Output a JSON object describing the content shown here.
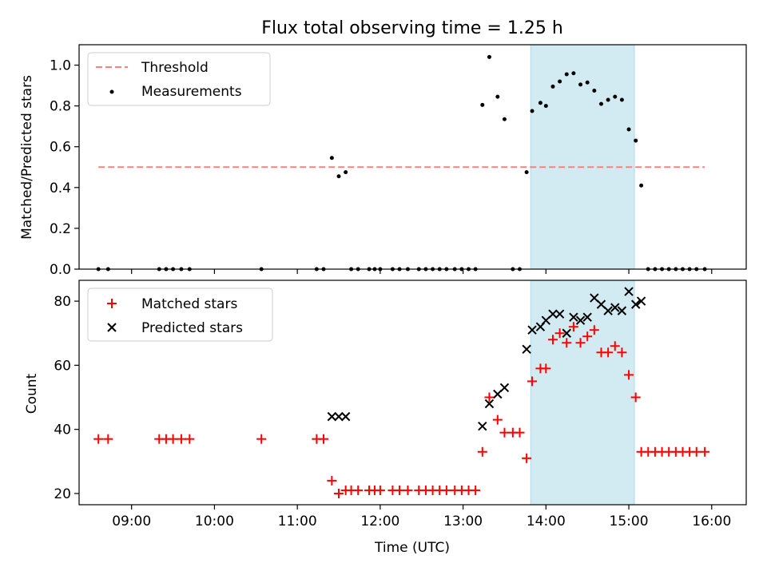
{
  "figure": {
    "title": "Flux total observing time = 1.25 h"
  },
  "chart_data": [
    {
      "type": "scatter",
      "panel": "top",
      "ylabel": "Matched/Predicted stars",
      "ylim": [
        0.0,
        1.1
      ],
      "yticks": [
        0.0,
        0.2,
        0.4,
        0.6,
        0.8,
        1.0
      ],
      "ytick_labels": [
        "0.0",
        "0.2",
        "0.4",
        "0.6",
        "0.8",
        "1.0"
      ],
      "xlim": [
        "08:22",
        "16:25"
      ],
      "legend_position": "top-left",
      "highlight_span": {
        "from": "13:49",
        "to": "15:04",
        "color": "#add8e6"
      },
      "threshold": {
        "name": "Threshold",
        "value": 0.5,
        "x_from": "08:36",
        "x_to": "15:55",
        "color": "#ff7f7f",
        "style": "dashed"
      },
      "series": [
        {
          "name": "Measurements",
          "color": "#000000",
          "marker": "dot",
          "points": [
            [
              "08:36",
              0.0
            ],
            [
              "08:43",
              0.0
            ],
            [
              "09:20",
              0.0
            ],
            [
              "09:25",
              0.0
            ],
            [
              "09:30",
              0.0
            ],
            [
              "09:36",
              0.0
            ],
            [
              "09:42",
              0.0
            ],
            [
              "10:34",
              0.0
            ],
            [
              "11:14",
              0.0
            ],
            [
              "11:19",
              0.0
            ],
            [
              "11:25",
              0.545
            ],
            [
              "11:30",
              0.455
            ],
            [
              "11:35",
              0.475
            ],
            [
              "11:39",
              0.0
            ],
            [
              "11:44",
              0.0
            ],
            [
              "11:52",
              0.0
            ],
            [
              "11:56",
              0.0
            ],
            [
              "12:00",
              0.0
            ],
            [
              "12:09",
              0.0
            ],
            [
              "12:14",
              0.0
            ],
            [
              "12:20",
              0.0
            ],
            [
              "12:28",
              0.0
            ],
            [
              "12:33",
              0.0
            ],
            [
              "12:38",
              0.0
            ],
            [
              "12:43",
              0.0
            ],
            [
              "12:48",
              0.0
            ],
            [
              "12:54",
              0.0
            ],
            [
              "12:59",
              0.0
            ],
            [
              "13:04",
              0.0
            ],
            [
              "13:09",
              0.0
            ],
            [
              "13:14",
              0.805
            ],
            [
              "13:19",
              1.04
            ],
            [
              "13:25",
              0.845
            ],
            [
              "13:30",
              0.735
            ],
            [
              "13:36",
              0.0
            ],
            [
              "13:41",
              0.0
            ],
            [
              "13:46",
              0.475
            ],
            [
              "13:50",
              0.775
            ],
            [
              "13:56",
              0.815
            ],
            [
              "14:00",
              0.8
            ],
            [
              "14:05",
              0.895
            ],
            [
              "14:10",
              0.92
            ],
            [
              "14:15",
              0.955
            ],
            [
              "14:20",
              0.96
            ],
            [
              "14:25",
              0.905
            ],
            [
              "14:30",
              0.915
            ],
            [
              "14:35",
              0.875
            ],
            [
              "14:40",
              0.81
            ],
            [
              "14:45",
              0.83
            ],
            [
              "14:50",
              0.845
            ],
            [
              "14:55",
              0.83
            ],
            [
              "15:00",
              0.685
            ],
            [
              "15:05",
              0.63
            ],
            [
              "15:09",
              0.41
            ],
            [
              "15:14",
              0.0
            ],
            [
              "15:19",
              0.0
            ],
            [
              "15:24",
              0.0
            ],
            [
              "15:29",
              0.0
            ],
            [
              "15:34",
              0.0
            ],
            [
              "15:39",
              0.0
            ],
            [
              "15:44",
              0.0
            ],
            [
              "15:49",
              0.0
            ],
            [
              "15:55",
              0.0
            ]
          ]
        }
      ]
    },
    {
      "type": "scatter",
      "panel": "bottom",
      "xlabel": "Time (UTC)",
      "ylabel": "Count",
      "ylim": [
        16.5,
        86.5
      ],
      "yticks": [
        20,
        40,
        60,
        80
      ],
      "ytick_labels": [
        "20",
        "40",
        "60",
        "80"
      ],
      "xlim": [
        "08:22",
        "16:25"
      ],
      "xticks": [
        "09:00",
        "10:00",
        "11:00",
        "12:00",
        "13:00",
        "14:00",
        "15:00",
        "16:00"
      ],
      "xtick_labels": [
        "09:00",
        "10:00",
        "11:00",
        "12:00",
        "13:00",
        "14:00",
        "15:00",
        "16:00"
      ],
      "legend_position": "top-left",
      "highlight_span": {
        "from": "13:49",
        "to": "15:04",
        "color": "#add8e6"
      },
      "series": [
        {
          "name": "Matched stars",
          "color": "#ff0000",
          "marker": "plus",
          "points": [
            [
              "08:36",
              37
            ],
            [
              "08:43",
              37
            ],
            [
              "09:20",
              37
            ],
            [
              "09:25",
              37
            ],
            [
              "09:30",
              37
            ],
            [
              "09:36",
              37
            ],
            [
              "09:42",
              37
            ],
            [
              "10:34",
              37
            ],
            [
              "11:14",
              37
            ],
            [
              "11:19",
              37
            ],
            [
              "11:25",
              24
            ],
            [
              "11:30",
              20
            ],
            [
              "11:35",
              21
            ],
            [
              "11:39",
              21
            ],
            [
              "11:44",
              21
            ],
            [
              "11:52",
              21
            ],
            [
              "11:56",
              21
            ],
            [
              "12:00",
              21
            ],
            [
              "12:09",
              21
            ],
            [
              "12:14",
              21
            ],
            [
              "12:20",
              21
            ],
            [
              "12:28",
              21
            ],
            [
              "12:33",
              21
            ],
            [
              "12:38",
              21
            ],
            [
              "12:43",
              21
            ],
            [
              "12:48",
              21
            ],
            [
              "12:54",
              21
            ],
            [
              "12:59",
              21
            ],
            [
              "13:04",
              21
            ],
            [
              "13:09",
              21
            ],
            [
              "13:14",
              33
            ],
            [
              "13:19",
              50
            ],
            [
              "13:25",
              43
            ],
            [
              "13:30",
              39
            ],
            [
              "13:36",
              39
            ],
            [
              "13:41",
              39
            ],
            [
              "13:46",
              31
            ],
            [
              "13:50",
              55
            ],
            [
              "13:56",
              59
            ],
            [
              "14:00",
              59
            ],
            [
              "14:05",
              68
            ],
            [
              "14:10",
              70
            ],
            [
              "14:15",
              67
            ],
            [
              "14:20",
              72
            ],
            [
              "14:25",
              67
            ],
            [
              "14:30",
              69
            ],
            [
              "14:35",
              71
            ],
            [
              "14:40",
              64
            ],
            [
              "14:45",
              64
            ],
            [
              "14:50",
              66
            ],
            [
              "14:55",
              64
            ],
            [
              "15:00",
              57
            ],
            [
              "15:05",
              50
            ],
            [
              "15:09",
              33
            ],
            [
              "15:14",
              33
            ],
            [
              "15:19",
              33
            ],
            [
              "15:24",
              33
            ],
            [
              "15:29",
              33
            ],
            [
              "15:34",
              33
            ],
            [
              "15:39",
              33
            ],
            [
              "15:44",
              33
            ],
            [
              "15:49",
              33
            ],
            [
              "15:55",
              33
            ]
          ]
        },
        {
          "name": "Predicted stars",
          "color": "#000000",
          "marker": "x",
          "points": [
            [
              "11:25",
              44
            ],
            [
              "11:30",
              44
            ],
            [
              "11:35",
              44
            ],
            [
              "13:14",
              41
            ],
            [
              "13:19",
              48
            ],
            [
              "13:25",
              51
            ],
            [
              "13:30",
              53
            ],
            [
              "13:46",
              65
            ],
            [
              "13:50",
              71
            ],
            [
              "13:56",
              72
            ],
            [
              "14:00",
              74
            ],
            [
              "14:05",
              76
            ],
            [
              "14:10",
              76
            ],
            [
              "14:15",
              70
            ],
            [
              "14:20",
              75
            ],
            [
              "14:25",
              74
            ],
            [
              "14:30",
              75
            ],
            [
              "14:35",
              81
            ],
            [
              "14:40",
              79
            ],
            [
              "14:45",
              77
            ],
            [
              "14:50",
              78
            ],
            [
              "14:55",
              77
            ],
            [
              "15:00",
              83
            ],
            [
              "15:05",
              79
            ],
            [
              "15:09",
              80
            ]
          ]
        }
      ]
    }
  ]
}
